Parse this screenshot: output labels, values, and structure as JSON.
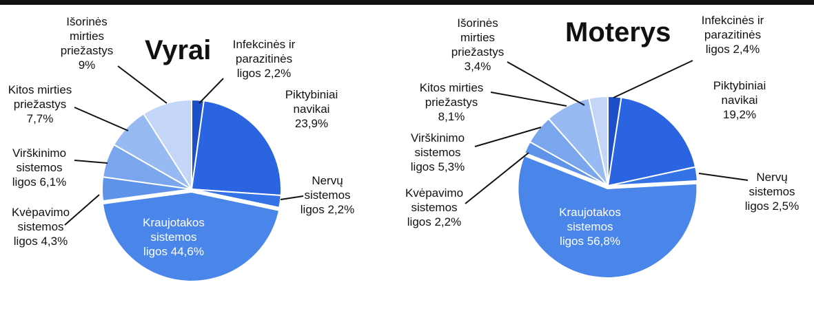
{
  "chart_data": [
    {
      "type": "pie",
      "title": "Vyrai",
      "unit": "%",
      "slices": [
        {
          "name": "Infekcinės ir parazitinės ligos",
          "value": 2.2,
          "color": "#1c4fc8",
          "label": [
            "Infekcinės ir",
            "parazitinės",
            "ligos 2,2%"
          ]
        },
        {
          "name": "Piktybiniai navikai",
          "value": 23.9,
          "color": "#2a64e0",
          "label": [
            "Piktybiniai",
            "navikai",
            "23,9%"
          ]
        },
        {
          "name": "Nervų sistemos ligos",
          "value": 2.2,
          "color": "#3373e6",
          "label": [
            "Nervų",
            "sistemos",
            "ligos  2,2%"
          ]
        },
        {
          "name": "Kraujotakos sistemos ligos",
          "value": 44.6,
          "color": "#4a86ea",
          "label": [
            "Kraujotakos",
            "sistemos",
            "ligos 44,6%"
          ]
        },
        {
          "name": "Kvėpavimo sistemos ligos",
          "value": 4.3,
          "color": "#5f93ea",
          "label": [
            "Kvėpavimo",
            "sistemos",
            "ligos 4,3%"
          ]
        },
        {
          "name": "Virškinimo sistemos ligos",
          "value": 6.1,
          "color": "#7aa6ee",
          "label": [
            "Virškinimo",
            "sistemos",
            "ligos  6,1%"
          ]
        },
        {
          "name": "Kitos mirties priežastys",
          "value": 7.7,
          "color": "#98baf2",
          "label": [
            "Kitos mirties",
            "priežastys",
            "7,7%"
          ]
        },
        {
          "name": "Išorinės mirties priežastys",
          "value": 9,
          "color": "#c4d6f8",
          "label": [
            "Išorinės",
            "mirties",
            "priežastys",
            "9%"
          ]
        }
      ]
    },
    {
      "type": "pie",
      "title": "Moterys",
      "unit": "%",
      "slices": [
        {
          "name": "Infekcinės ir parazitinės ligos",
          "value": 2.4,
          "color": "#1c4fc8",
          "label": [
            "Infekcinės ir",
            "parazitinės",
            "ligos 2,4%"
          ]
        },
        {
          "name": "Piktybiniai navikai",
          "value": 19.2,
          "color": "#2a64e0",
          "label": [
            "Piktybiniai",
            "navikai",
            "19,2%"
          ]
        },
        {
          "name": "Nervų sistemos ligos",
          "value": 2.5,
          "color": "#3373e6",
          "label": [
            "Nervų",
            "sistemos",
            "ligos  2,5%"
          ]
        },
        {
          "name": "Kraujotakos sistemos ligos",
          "value": 56.8,
          "color": "#4a86ea",
          "label": [
            "Kraujotakos",
            "sistemos",
            "ligos 56,8%"
          ]
        },
        {
          "name": "Kvėpavimo sistemos ligos",
          "value": 2.2,
          "color": "#5f93ea",
          "label": [
            "Kvėpavimo",
            "sistemos",
            "ligos 2,2%"
          ]
        },
        {
          "name": "Virškinimo sistemos ligos",
          "value": 5.3,
          "color": "#7aa6ee",
          "label": [
            "Virškinimo",
            "sistemos",
            "ligos 5,3%"
          ]
        },
        {
          "name": "Kitos mirties priežastys",
          "value": 8.1,
          "color": "#98baf2",
          "label": [
            "Kitos mirties",
            "priežastys",
            "8,1%"
          ]
        },
        {
          "name": "Išorinės mirties priežastys",
          "value": 3.4,
          "color": "#c4d6f8",
          "label": [
            "Išorinės",
            "mirties",
            "priežastys",
            "3,4%"
          ]
        }
      ]
    }
  ]
}
